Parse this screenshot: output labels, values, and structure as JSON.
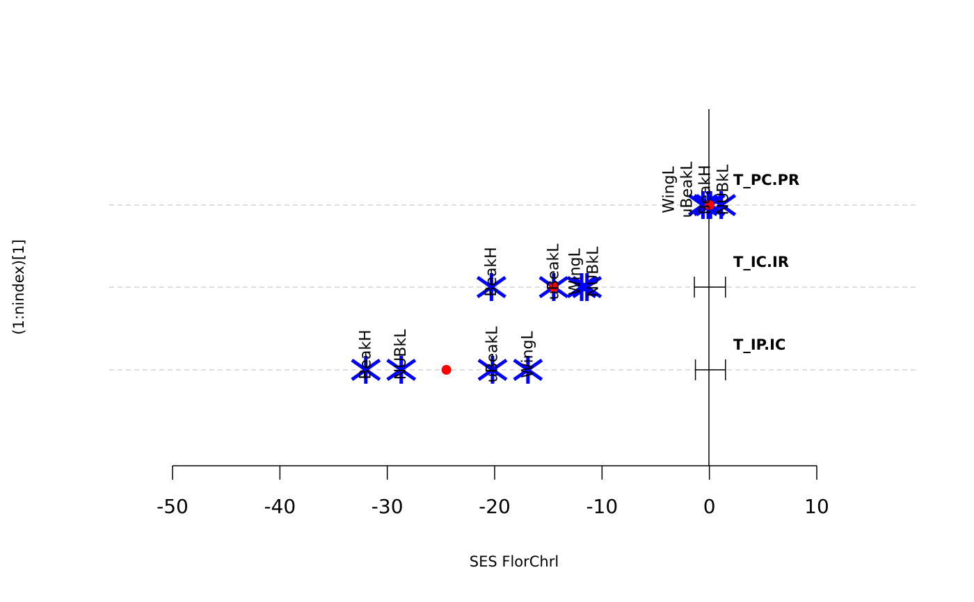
{
  "chart_data": {
    "type": "scatter",
    "title": "",
    "xlabel": "SES FlorChrl",
    "ylabel": "(1:nindex)[1]",
    "xlim": [
      -50,
      10
    ],
    "xticks": [
      "-50",
      "-40",
      "-30",
      "-20",
      "-10",
      "0",
      "10"
    ],
    "xtick_values": [
      -50,
      -40,
      -30,
      -20,
      -10,
      0,
      10
    ],
    "grid": "horizontal dashed per row",
    "colors": {
      "points": "#0000ff",
      "mean": "#ff0000",
      "axis": "#000000",
      "grid": "#d3d3d3"
    },
    "rows": [
      {
        "name": "T_PC.PR",
        "mean": 0.0,
        "ci": [
          -0.2,
          0.2
        ],
        "points": [
          {
            "label": "WingL",
            "x": -0.6
          },
          {
            "label": "uBeakL",
            "x": -0.1
          },
          {
            "label": "BeakH",
            "x": 0.1
          },
          {
            "label": "NUBkL",
            "x": 1.1
          }
        ]
      },
      {
        "name": "T_IC.IR",
        "mean": -14.5,
        "ci": [
          -1.4,
          1.5
        ],
        "points": [
          {
            "label": "BeakH",
            "x": -20.3
          },
          {
            "label": "uBeakL",
            "x": -14.5
          },
          {
            "label": "WingL",
            "x": -11.9
          },
          {
            "label": "NUBkL",
            "x": -11.4
          }
        ]
      },
      {
        "name": "T_IP.IC",
        "mean": -24.5,
        "ci": [
          -1.3,
          1.5
        ],
        "points": [
          {
            "label": "BeakH",
            "x": -32.0
          },
          {
            "label": "NUBkL",
            "x": -28.7
          },
          {
            "label": "uBeakL",
            "x": -20.2
          },
          {
            "label": "WingL",
            "x": -16.9
          }
        ]
      }
    ]
  }
}
